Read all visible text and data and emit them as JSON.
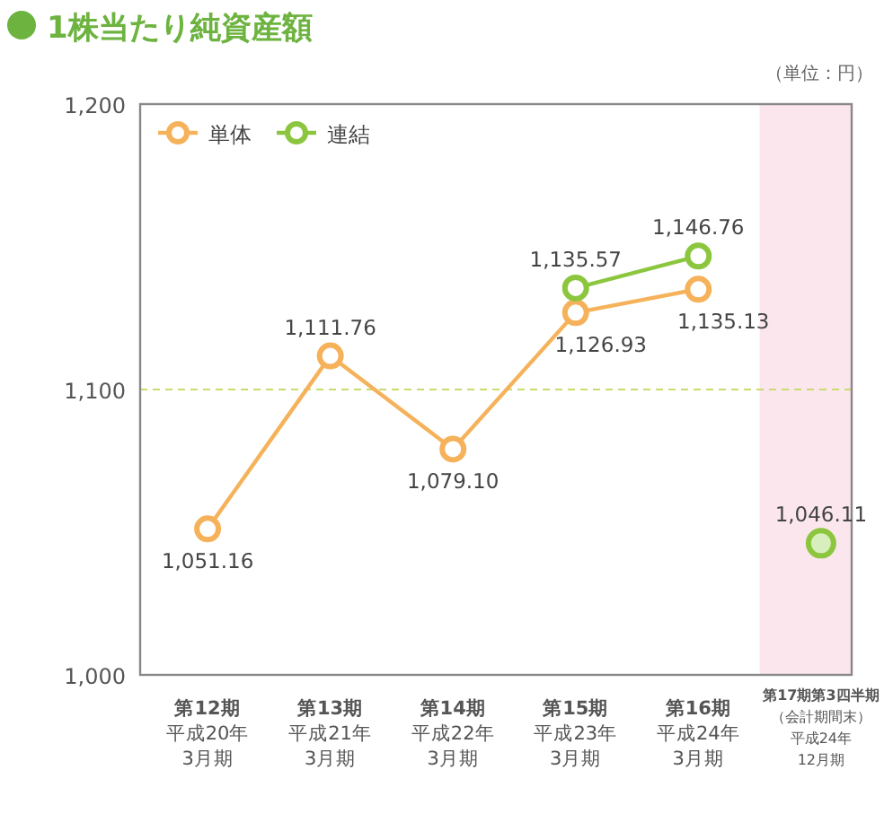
{
  "chart_data": {
    "type": "line",
    "title": "1株当たり純資産額",
    "annotations": [
      "（単位：円）"
    ],
    "categories": [
      "第12期平成20年3月期",
      "第13期平成21年3月期",
      "第14期平成22年3月期",
      "第15期平成23年3月期",
      "第16期平成24年3月期",
      "第17期第3四半期（会計期間末）平成24年12月期"
    ],
    "series": [
      {
        "name": "単体",
        "color": "#f5b25a",
        "values": [
          1051.16,
          1111.76,
          1079.1,
          1126.93,
          1135.13,
          null
        ],
        "value_labels": [
          "1,051.16",
          "1,111.76",
          "1,079.10",
          "1,126.93",
          "1,135.13",
          null
        ]
      },
      {
        "name": "連結",
        "color": "#8cc63e",
        "values": [
          null,
          null,
          null,
          1135.57,
          1146.76,
          null
        ],
        "value_labels": [
          null,
          null,
          null,
          "1,135.57",
          "1,146.76",
          null
        ]
      },
      {
        "type": "scatter",
        "color": "#8cc63e",
        "values": [
          null,
          null,
          null,
          null,
          null,
          1046.11
        ],
        "value_labels": [
          null,
          null,
          null,
          null,
          null,
          "1,046.11"
        ]
      }
    ],
    "ylim": [
      1000,
      1200
    ],
    "yticks": [
      {
        "value": 1000,
        "label": "1,000"
      },
      {
        "value": 1100,
        "label": "1,100"
      },
      {
        "value": 1200,
        "label": "1,200"
      }
    ],
    "legend": "top left",
    "marker": "circle",
    "ref_lines": [
      {
        "axis": "y",
        "value": 1100,
        "color": "#c8dc6e",
        "line_style": "dashed"
      }
    ],
    "bands": [
      {
        "axis": "x",
        "from": "第17期第3四半期（会計期間末）平成24年12月期",
        "to": "第17期第3四半期（会計期間末）平成24年12月期",
        "color": "#fbe6ee"
      }
    ]
  }
}
